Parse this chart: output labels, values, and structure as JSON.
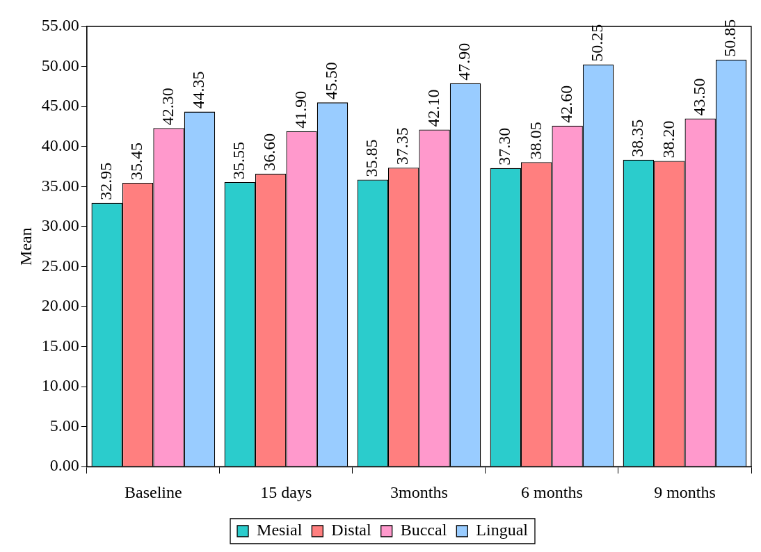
{
  "chart_data": {
    "type": "bar",
    "ylabel": "Mean",
    "categories": [
      "Baseline",
      "15 days",
      "3months",
      "6 months",
      "9 months"
    ],
    "series": [
      {
        "name": "Mesial",
        "color": "#2bcccc",
        "values": [
          32.95,
          35.55,
          35.85,
          37.3,
          38.35
        ]
      },
      {
        "name": "Distal",
        "color": "#ff7f7f",
        "values": [
          35.45,
          36.6,
          37.35,
          38.05,
          38.2
        ]
      },
      {
        "name": "Buccal",
        "color": "#ff99cc",
        "values": [
          42.3,
          41.9,
          42.1,
          42.6,
          43.5
        ]
      },
      {
        "name": "Lingual",
        "color": "#99ccff",
        "values": [
          44.35,
          45.5,
          47.9,
          50.25,
          50.85
        ]
      }
    ],
    "ylim": [
      0,
      55
    ],
    "yticks": [
      {
        "value": 0,
        "label": "0.00"
      },
      {
        "value": 5,
        "label": "5.00"
      },
      {
        "value": 10,
        "label": "10.00"
      },
      {
        "value": 15,
        "label": "15.00"
      },
      {
        "value": 20,
        "label": "20.00"
      },
      {
        "value": 25,
        "label": "25.00"
      },
      {
        "value": 30,
        "label": "30.00"
      },
      {
        "value": 35,
        "label": "35.00"
      },
      {
        "value": 40,
        "label": "40.00"
      },
      {
        "value": 45,
        "label": "45.00"
      },
      {
        "value": 50,
        "label": "50.00"
      },
      {
        "value": 55,
        "label": "55.00"
      }
    ],
    "value_labels": [
      [
        "32.95",
        "35.55",
        "35.85",
        "37.30",
        "38.35"
      ],
      [
        "35.45",
        "36.60",
        "37.35",
        "38.05",
        "38.20"
      ],
      [
        "42.30",
        "41.90",
        "42.10",
        "42.60",
        "43.50"
      ],
      [
        "44.35",
        "45.50",
        "47.90",
        "50.25",
        "50.85"
      ]
    ],
    "grid": false,
    "legend": "bottom"
  }
}
